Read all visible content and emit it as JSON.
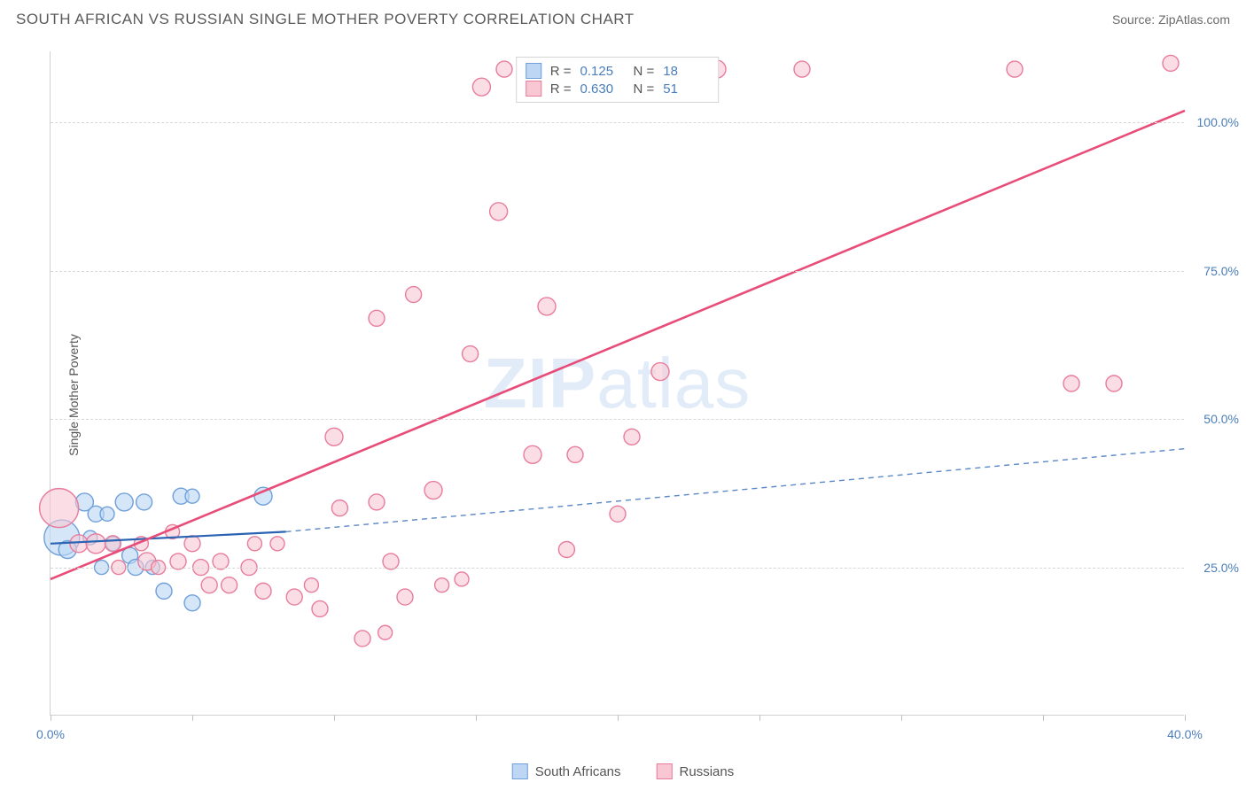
{
  "title": "SOUTH AFRICAN VS RUSSIAN SINGLE MOTHER POVERTY CORRELATION CHART",
  "source": "Source: ZipAtlas.com",
  "y_axis_label": "Single Mother Poverty",
  "watermark_bold": "ZIP",
  "watermark_rest": "atlas",
  "chart": {
    "type": "scatter",
    "xlim": [
      0,
      40
    ],
    "ylim": [
      0,
      112
    ],
    "x_ticks": [
      0,
      5,
      10,
      15,
      20,
      25,
      30,
      35,
      40
    ],
    "x_tick_labels_shown": {
      "0": "0.0%",
      "40": "40.0%"
    },
    "y_ticks": [
      25,
      50,
      75,
      100
    ],
    "y_tick_labels": {
      "25": "25.0%",
      "50": "50.0%",
      "75": "75.0%",
      "100": "100.0%"
    },
    "grid_color": "#d8d8d8",
    "background_color": "#ffffff",
    "series": [
      {
        "id": "south_africans",
        "label": "South Africans",
        "fill": "#bcd6f4",
        "stroke": "#6fa0da",
        "fill_opacity": 0.62,
        "points": [
          {
            "x": 0.4,
            "y": 30,
            "r": 20
          },
          {
            "x": 0.6,
            "y": 28,
            "r": 10
          },
          {
            "x": 1.2,
            "y": 36,
            "r": 10
          },
          {
            "x": 1.4,
            "y": 30,
            "r": 8
          },
          {
            "x": 1.6,
            "y": 34,
            "r": 9
          },
          {
            "x": 1.8,
            "y": 25,
            "r": 8
          },
          {
            "x": 2.0,
            "y": 34,
            "r": 8
          },
          {
            "x": 2.2,
            "y": 29,
            "r": 8
          },
          {
            "x": 2.6,
            "y": 36,
            "r": 10
          },
          {
            "x": 2.8,
            "y": 27,
            "r": 9
          },
          {
            "x": 3.0,
            "y": 25,
            "r": 9
          },
          {
            "x": 3.3,
            "y": 36,
            "r": 9
          },
          {
            "x": 3.6,
            "y": 25,
            "r": 8
          },
          {
            "x": 4.0,
            "y": 21,
            "r": 9
          },
          {
            "x": 4.6,
            "y": 37,
            "r": 9
          },
          {
            "x": 5.0,
            "y": 19,
            "r": 9
          },
          {
            "x": 5.0,
            "y": 37,
            "r": 8
          },
          {
            "x": 7.5,
            "y": 37,
            "r": 10
          }
        ],
        "trend": {
          "x1": 0,
          "y1": 29,
          "x2": 8.3,
          "y2": 31,
          "stroke": "#2b63b3",
          "width": 2.2,
          "dash": null
        },
        "trend_ext": {
          "x1": 8.3,
          "y1": 31,
          "x2": 40,
          "y2": 45,
          "stroke": "#5b88c7",
          "width": 1.4,
          "dash": "6 5"
        }
      },
      {
        "id": "russians",
        "label": "Russians",
        "fill": "#f8c7d3",
        "stroke": "#e87c9c",
        "fill_opacity": 0.58,
        "points": [
          {
            "x": 0.3,
            "y": 35,
            "r": 22
          },
          {
            "x": 1.0,
            "y": 29,
            "r": 10
          },
          {
            "x": 1.6,
            "y": 29,
            "r": 11
          },
          {
            "x": 2.2,
            "y": 29,
            "r": 9
          },
          {
            "x": 2.4,
            "y": 25,
            "r": 8
          },
          {
            "x": 3.2,
            "y": 29,
            "r": 8
          },
          {
            "x": 3.4,
            "y": 26,
            "r": 10
          },
          {
            "x": 3.8,
            "y": 25,
            "r": 8
          },
          {
            "x": 4.3,
            "y": 31,
            "r": 8
          },
          {
            "x": 4.5,
            "y": 26,
            "r": 9
          },
          {
            "x": 5.0,
            "y": 29,
            "r": 9
          },
          {
            "x": 5.3,
            "y": 25,
            "r": 9
          },
          {
            "x": 5.6,
            "y": 22,
            "r": 9
          },
          {
            "x": 6.0,
            "y": 26,
            "r": 9
          },
          {
            "x": 6.3,
            "y": 22,
            "r": 9
          },
          {
            "x": 7.0,
            "y": 25,
            "r": 9
          },
          {
            "x": 7.2,
            "y": 29,
            "r": 8
          },
          {
            "x": 7.5,
            "y": 21,
            "r": 9
          },
          {
            "x": 8.0,
            "y": 29,
            "r": 8
          },
          {
            "x": 8.6,
            "y": 20,
            "r": 9
          },
          {
            "x": 9.2,
            "y": 22,
            "r": 8
          },
          {
            "x": 9.5,
            "y": 18,
            "r": 9
          },
          {
            "x": 10.0,
            "y": 47,
            "r": 10
          },
          {
            "x": 10.2,
            "y": 35,
            "r": 9
          },
          {
            "x": 11.0,
            "y": 13,
            "r": 9
          },
          {
            "x": 11.5,
            "y": 36,
            "r": 9
          },
          {
            "x": 11.5,
            "y": 67,
            "r": 9
          },
          {
            "x": 11.8,
            "y": 14,
            "r": 8
          },
          {
            "x": 12.0,
            "y": 26,
            "r": 9
          },
          {
            "x": 12.5,
            "y": 20,
            "r": 9
          },
          {
            "x": 12.8,
            "y": 71,
            "r": 9
          },
          {
            "x": 13.5,
            "y": 38,
            "r": 10
          },
          {
            "x": 13.8,
            "y": 22,
            "r": 8
          },
          {
            "x": 14.5,
            "y": 23,
            "r": 8
          },
          {
            "x": 14.8,
            "y": 61,
            "r": 9
          },
          {
            "x": 15.2,
            "y": 106,
            "r": 10
          },
          {
            "x": 15.8,
            "y": 85,
            "r": 10
          },
          {
            "x": 16.0,
            "y": 109,
            "r": 9
          },
          {
            "x": 17.0,
            "y": 44,
            "r": 10
          },
          {
            "x": 17.5,
            "y": 69,
            "r": 10
          },
          {
            "x": 18.2,
            "y": 28,
            "r": 9
          },
          {
            "x": 18.5,
            "y": 44,
            "r": 9
          },
          {
            "x": 20.0,
            "y": 34,
            "r": 9
          },
          {
            "x": 20.5,
            "y": 47,
            "r": 9
          },
          {
            "x": 21.5,
            "y": 58,
            "r": 10
          },
          {
            "x": 23.5,
            "y": 109,
            "r": 10
          },
          {
            "x": 26.5,
            "y": 109,
            "r": 9
          },
          {
            "x": 34.0,
            "y": 109,
            "r": 9
          },
          {
            "x": 36.0,
            "y": 56,
            "r": 9
          },
          {
            "x": 37.5,
            "y": 56,
            "r": 9
          },
          {
            "x": 39.5,
            "y": 110,
            "r": 9
          }
        ],
        "trend": {
          "x1": 0,
          "y1": 23,
          "x2": 40,
          "y2": 102,
          "stroke": "#e84c78",
          "width": 2.6,
          "dash": null
        }
      }
    ],
    "stat_legend": [
      {
        "swatch_fill": "#bcd6f4",
        "swatch_stroke": "#6fa0da",
        "r_label": "R =",
        "r_val": "0.125",
        "n_label": "N =",
        "n_val": "18"
      },
      {
        "swatch_fill": "#f8c7d3",
        "swatch_stroke": "#e87c9c",
        "r_label": "R =",
        "r_val": "0.630",
        "n_label": "N =",
        "n_val": "51"
      }
    ]
  }
}
